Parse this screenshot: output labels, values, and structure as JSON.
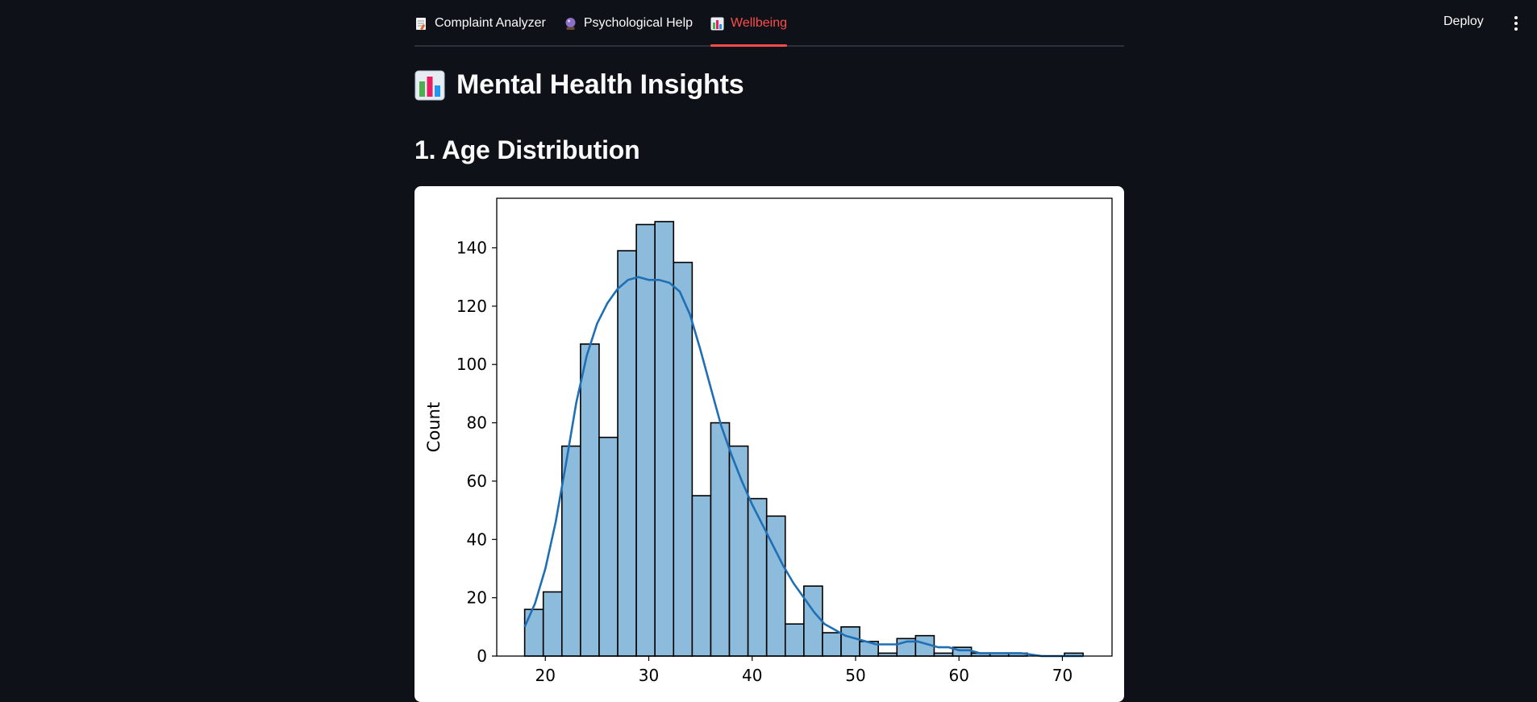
{
  "nav": {
    "tabs": [
      {
        "label": "Complaint Analyzer",
        "icon": "memo-icon",
        "active": false
      },
      {
        "label": "Psychological Help",
        "icon": "crystal-ball-icon",
        "active": false
      },
      {
        "label": "Wellbeing",
        "icon": "bar-chart-icon",
        "active": true
      }
    ],
    "deploy_label": "Deploy",
    "menu_icon": "kebab-menu-icon"
  },
  "page": {
    "title": "Mental Health Insights",
    "title_icon": "bar-chart-icon",
    "section_title": "1. Age Distribution"
  },
  "colors": {
    "background": "#0e1117",
    "accent": "#ff4b4b",
    "bar_fill": "#8dbbdc",
    "kde_line": "#1f6fb4"
  },
  "chart_data": {
    "type": "bar",
    "subtype": "histogram_with_kde",
    "xlabel": "",
    "ylabel": "Count",
    "xlim": [
      15.3,
      74.8
    ],
    "ylim": [
      0,
      157
    ],
    "xticks": [
      20,
      30,
      40,
      50,
      60,
      70
    ],
    "yticks": [
      0,
      20,
      40,
      60,
      80,
      100,
      120,
      140
    ],
    "bin_start": 18,
    "bin_width": 1.8,
    "counts": [
      16,
      22,
      72,
      107,
      75,
      139,
      148,
      149,
      135,
      55,
      80,
      72,
      54,
      48,
      11,
      24,
      8,
      10,
      5,
      1,
      6,
      7,
      1,
      3,
      1,
      1,
      1,
      0,
      0,
      1
    ],
    "kde": [
      [
        18,
        10
      ],
      [
        19,
        18
      ],
      [
        20,
        30
      ],
      [
        21,
        46
      ],
      [
        22,
        66
      ],
      [
        23,
        87
      ],
      [
        24,
        103
      ],
      [
        25,
        114
      ],
      [
        26,
        121
      ],
      [
        27,
        126
      ],
      [
        28,
        129
      ],
      [
        29,
        130
      ],
      [
        30,
        129
      ],
      [
        31,
        129
      ],
      [
        32,
        128
      ],
      [
        33,
        125
      ],
      [
        34,
        117
      ],
      [
        35,
        105
      ],
      [
        36,
        92
      ],
      [
        37,
        79
      ],
      [
        38,
        69
      ],
      [
        39,
        60
      ],
      [
        40,
        52
      ],
      [
        41,
        45
      ],
      [
        42,
        38
      ],
      [
        43,
        31
      ],
      [
        44,
        25
      ],
      [
        45,
        20
      ],
      [
        46,
        15
      ],
      [
        47,
        11
      ],
      [
        48,
        9
      ],
      [
        49,
        7
      ],
      [
        50,
        6
      ],
      [
        51,
        5
      ],
      [
        52,
        4
      ],
      [
        53,
        4
      ],
      [
        54,
        4
      ],
      [
        55,
        5
      ],
      [
        56,
        5
      ],
      [
        57,
        4
      ],
      [
        58,
        3
      ],
      [
        59,
        3
      ],
      [
        60,
        2
      ],
      [
        61,
        2
      ],
      [
        62,
        1
      ],
      [
        63,
        1
      ],
      [
        64,
        1
      ],
      [
        66,
        1
      ],
      [
        68,
        0
      ],
      [
        72,
        0
      ]
    ],
    "grid": false,
    "legend": "none"
  }
}
